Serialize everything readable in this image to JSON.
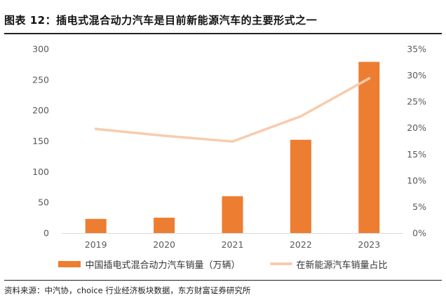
{
  "title": "图表 12：插电式混合动力汽车是目前新能源汽车的主要形式之一",
  "source": "资料来源：中汽协，choice 行业经济板块数据，东方财富证券研究所",
  "colors": {
    "bar": "#ED7D31",
    "line": "#F8CBAD",
    "axis": "#d9d9d9",
    "tick": "#595959"
  },
  "chart_data": {
    "type": "bar",
    "categories": [
      "2019",
      "2020",
      "2021",
      "2022",
      "2023"
    ],
    "series": [
      {
        "name": "中国插电式混合动力汽车销量（万辆）",
        "type": "bar",
        "axis": "left",
        "values": [
          23,
          25,
          60,
          152,
          279
        ]
      },
      {
        "name": "在新能源汽车销量占比",
        "type": "line",
        "axis": "right",
        "values": [
          19.8,
          18.5,
          17.4,
          22.2,
          29.4
        ]
      }
    ],
    "y_left": {
      "ylim": [
        0,
        300
      ],
      "ticks": [
        "0",
        "50",
        "100",
        "150",
        "200",
        "250",
        "300"
      ]
    },
    "y_right": {
      "ylim": [
        0,
        35
      ],
      "ticks": [
        "0%",
        "5%",
        "10%",
        "15%",
        "20%",
        "25%",
        "30%",
        "35%"
      ]
    },
    "xlabel": "",
    "ylabel": "",
    "grid": false,
    "legend_position": "bottom"
  }
}
